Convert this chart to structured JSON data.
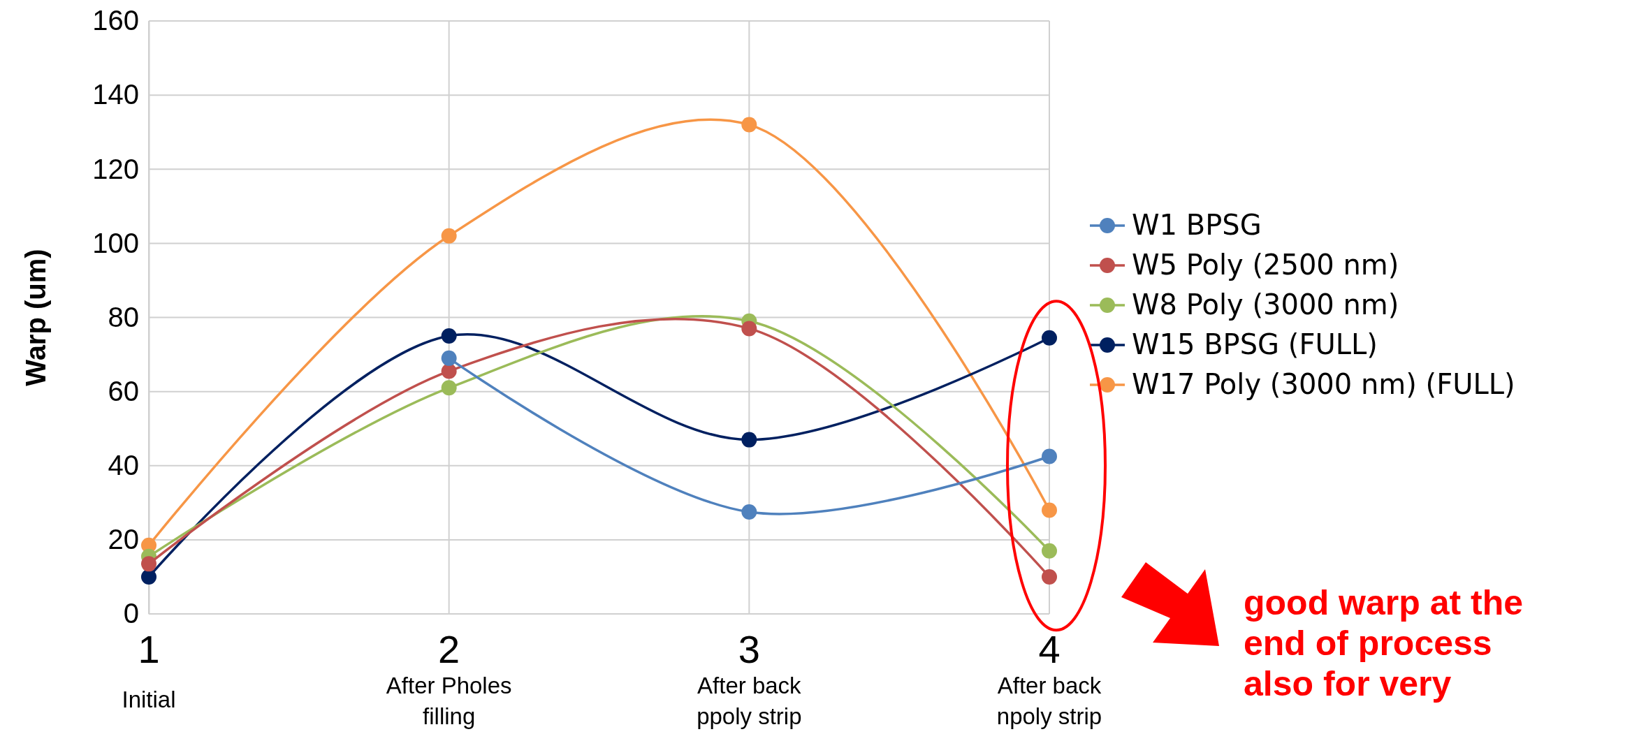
{
  "chart_data": {
    "type": "line",
    "ylabel": "Warp (um)",
    "categories": [
      "1\nInitial",
      "2\nAfter Pholes\nfilling",
      "3\nAfter back\nppoly strip",
      "4\nAfter back\nnpoly strip"
    ],
    "series": [
      {
        "name": "W1 BPSG",
        "color": "#4f81bd",
        "values": [
          null,
          69,
          27.5,
          42.5
        ]
      },
      {
        "name": "W5 Poly (2500 nm)",
        "color": "#c0504d",
        "values": [
          13.5,
          65.5,
          77,
          10
        ]
      },
      {
        "name": "W8 Poly (3000 nm)",
        "color": "#9bbb59",
        "values": [
          15.5,
          61,
          79,
          17
        ]
      },
      {
        "name": "W15 BPSG (FULL)",
        "color": "#002060",
        "values": [
          10,
          75,
          47,
          74.5
        ]
      },
      {
        "name": "W17 Poly (3000 nm) (FULL)",
        "color": "#f79646",
        "values": [
          18.5,
          102,
          132,
          28
        ]
      }
    ],
    "ylim": [
      0,
      160
    ],
    "yticks": [
      0,
      20,
      40,
      60,
      80,
      100,
      120,
      140,
      160
    ],
    "grid": true,
    "legend": "right",
    "marker": "circle",
    "line_style": "solid",
    "annotations": [
      "good warp at the end of process also for very"
    ]
  }
}
